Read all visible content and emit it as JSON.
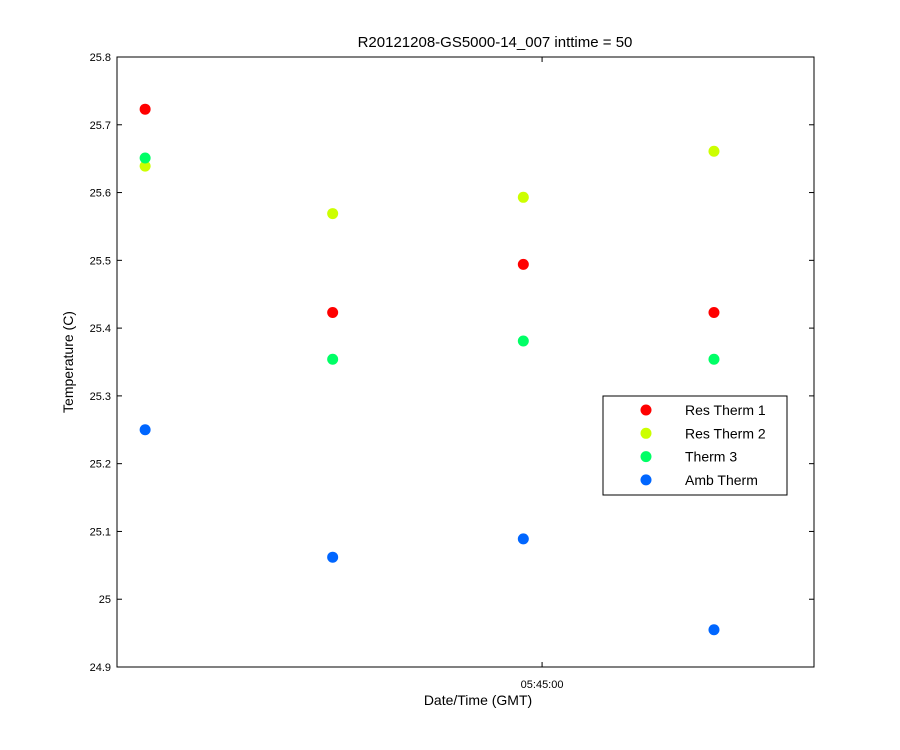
{
  "chart_data": {
    "type": "scatter",
    "title": "R20121208-GS5000-14_007 inttime = 50",
    "xlabel": "Date/Time (GMT)",
    "ylabel": "Temperature (C)",
    "ylim": [
      24.9,
      25.8
    ],
    "yticks": [
      24.9,
      25,
      25.1,
      25.2,
      25.3,
      25.4,
      25.5,
      25.6,
      25.7,
      25.8
    ],
    "xlim": [
      "05:42:44",
      "05:46:27"
    ],
    "xticks": [
      "05:45:00"
    ],
    "x": [
      "05:42:53",
      "05:43:53",
      "05:44:54",
      "05:45:55"
    ],
    "grid": false,
    "legend_position": "right",
    "series": [
      {
        "name": "Res Therm 1",
        "color": "#ff0000",
        "values": [
          25.723,
          25.423,
          25.494,
          25.423
        ]
      },
      {
        "name": "Res Therm 2",
        "color": "#ccff00",
        "values": [
          25.639,
          25.569,
          25.593,
          25.661
        ]
      },
      {
        "name": "Therm 3",
        "color": "#00ff66",
        "values": [
          25.651,
          25.354,
          25.381,
          25.354
        ]
      },
      {
        "name": "Amb Therm",
        "color": "#0066ff",
        "values": [
          25.25,
          25.062,
          25.089,
          24.955
        ]
      }
    ]
  }
}
